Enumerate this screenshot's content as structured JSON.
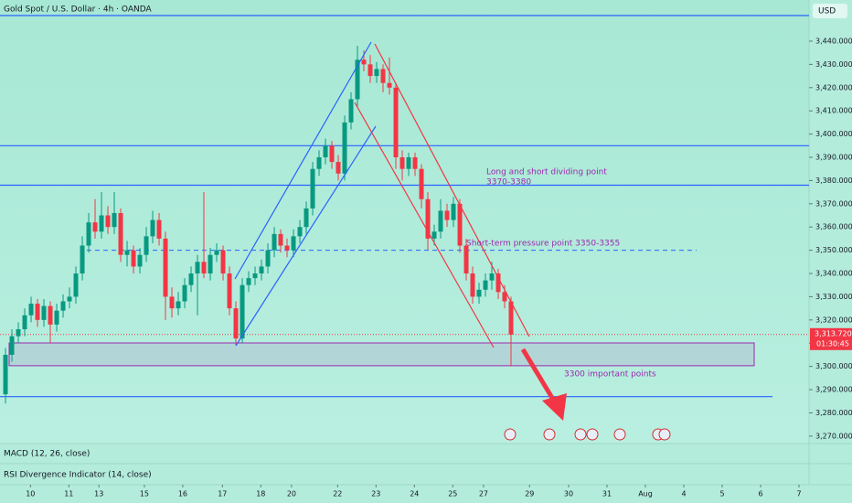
{
  "chart_data": {
    "type": "candlestick",
    "title": "Gold Spot / U.S. Dollar · 4h · OANDA",
    "currency": "USD",
    "countdown": "01:30:45",
    "last_price": {
      "value": 3313.72,
      "label": "3,313.720"
    },
    "up_color": "#089981",
    "down_color": "#f23645",
    "ylim": [
      3266.8,
      3457.7
    ],
    "xlim": [
      -0.86,
      125.57
    ],
    "yticks": [
      {
        "value": 3270,
        "label": "3,270.000"
      },
      {
        "value": 3280,
        "label": "3,280.000"
      },
      {
        "value": 3290,
        "label": "3,290.000"
      },
      {
        "value": 3300,
        "label": "3,300.000"
      },
      {
        "value": 3310,
        "label": "3,310.000"
      },
      {
        "value": 3320,
        "label": "3,320.000"
      },
      {
        "value": 3330,
        "label": "3,330.000"
      },
      {
        "value": 3340,
        "label": "3,340.000"
      },
      {
        "value": 3350,
        "label": "3,350.000"
      },
      {
        "value": 3360,
        "label": "3,360.000"
      },
      {
        "value": 3370,
        "label": "3,370.000"
      },
      {
        "value": 3380,
        "label": "3,380.000"
      },
      {
        "value": 3390,
        "label": "3,390.000"
      },
      {
        "value": 3400,
        "label": "3,400.000"
      },
      {
        "value": 3410,
        "label": "3,410.000"
      },
      {
        "value": 3420,
        "label": "3,420.000"
      },
      {
        "value": 3430,
        "label": "3,430.000"
      },
      {
        "value": 3440,
        "label": "3,440.000"
      }
    ],
    "xticks": [
      {
        "value": 3.9,
        "label": "10"
      },
      {
        "value": 9.9,
        "label": "11"
      },
      {
        "value": 14.6,
        "label": "13"
      },
      {
        "value": 21.7,
        "label": "15"
      },
      {
        "value": 27.7,
        "label": "16"
      },
      {
        "value": 33.9,
        "label": "17"
      },
      {
        "value": 39.9,
        "label": "18"
      },
      {
        "value": 44.7,
        "label": "20"
      },
      {
        "value": 51.9,
        "label": "22"
      },
      {
        "value": 57.9,
        "label": "23"
      },
      {
        "value": 63.9,
        "label": "24"
      },
      {
        "value": 69.9,
        "label": "25"
      },
      {
        "value": 74.7,
        "label": "27"
      },
      {
        "value": 81.9,
        "label": "29"
      },
      {
        "value": 88,
        "label": "30"
      },
      {
        "value": 94,
        "label": "31"
      },
      {
        "value": 100,
        "label": "Aug"
      },
      {
        "value": 106,
        "label": "4"
      },
      {
        "value": 112,
        "label": "5"
      },
      {
        "value": 118,
        "label": "6"
      },
      {
        "value": 124,
        "label": "7"
      }
    ],
    "levels": [
      3451,
      3395,
      3378,
      3287
    ],
    "dashed_level": 3350,
    "zone": [
      3300.3,
      3310.1
    ],
    "annotations": [
      "Long and short dividing point",
      "3370-3380",
      "Short-term pressure point 3350-3355",
      "3300 important points"
    ],
    "indicators": [
      "MACD (12, 26, close)",
      "RSI Divergence Indicator (14, close)"
    ],
    "ohlc": [
      [
        3288,
        3308,
        3284,
        3305
      ],
      [
        3305,
        3316,
        3302,
        3313
      ],
      [
        3313,
        3319,
        3310,
        3316
      ],
      [
        3316,
        3325,
        3313,
        3322
      ],
      [
        3322,
        3330,
        3319,
        3327
      ],
      [
        3327,
        3329,
        3317,
        3320
      ],
      [
        3320,
        3329,
        3317,
        3326
      ],
      [
        3326,
        3328,
        3310,
        3318
      ],
      [
        3318,
        3327,
        3315,
        3324
      ],
      [
        3324,
        3331,
        3321,
        3328
      ],
      [
        3328,
        3334,
        3325,
        3330
      ],
      [
        3330,
        3343,
        3327,
        3340
      ],
      [
        3340,
        3356,
        3337,
        3352
      ],
      [
        3352,
        3366,
        3349,
        3362
      ],
      [
        3362,
        3372,
        3355,
        3358
      ],
      [
        3358,
        3375,
        3355,
        3365
      ],
      [
        3365,
        3369,
        3357,
        3360
      ],
      [
        3360,
        3375,
        3357,
        3366
      ],
      [
        3366,
        3368,
        3345,
        3348
      ],
      [
        3348,
        3354,
        3343,
        3350
      ],
      [
        3350,
        3352,
        3340,
        3343
      ],
      [
        3343,
        3351,
        3340,
        3348
      ],
      [
        3348,
        3360,
        3345,
        3356
      ],
      [
        3356,
        3367,
        3353,
        3363
      ],
      [
        3363,
        3366,
        3352,
        3355
      ],
      [
        3355,
        3358,
        3320,
        3330
      ],
      [
        3330,
        3334,
        3321,
        3325
      ],
      [
        3325,
        3332,
        3322,
        3328
      ],
      [
        3328,
        3338,
        3325,
        3335
      ],
      [
        3335,
        3343,
        3332,
        3340
      ],
      [
        3340,
        3348,
        3322,
        3345
      ],
      [
        3345,
        3375,
        3338,
        3340
      ],
      [
        3340,
        3351,
        3337,
        3348
      ],
      [
        3348,
        3353,
        3345,
        3350
      ],
      [
        3350,
        3352,
        3337,
        3340
      ],
      [
        3340,
        3343,
        3322,
        3325
      ],
      [
        3325,
        3328,
        3309,
        3312
      ],
      [
        3312,
        3338,
        3310,
        3335
      ],
      [
        3335,
        3341,
        3332,
        3338
      ],
      [
        3338,
        3343,
        3335,
        3340
      ],
      [
        3340,
        3346,
        3337,
        3343
      ],
      [
        3343,
        3353,
        3340,
        3350
      ],
      [
        3350,
        3360,
        3347,
        3357
      ],
      [
        3357,
        3359,
        3349,
        3352
      ],
      [
        3352,
        3355,
        3347,
        3350
      ],
      [
        3350,
        3359,
        3347,
        3356
      ],
      [
        3356,
        3363,
        3353,
        3360
      ],
      [
        3360,
        3371,
        3357,
        3368
      ],
      [
        3368,
        3388,
        3365,
        3385
      ],
      [
        3385,
        3393,
        3382,
        3390
      ],
      [
        3390,
        3398,
        3387,
        3395
      ],
      [
        3395,
        3397,
        3385,
        3388
      ],
      [
        3388,
        3391,
        3380,
        3383
      ],
      [
        3383,
        3408,
        3380,
        3405
      ],
      [
        3405,
        3418,
        3402,
        3415
      ],
      [
        3415,
        3438,
        3412,
        3432
      ],
      [
        3432,
        3436,
        3427,
        3430
      ],
      [
        3430,
        3434,
        3422,
        3425
      ],
      [
        3425,
        3431,
        3422,
        3428
      ],
      [
        3428,
        3430,
        3418,
        3422
      ],
      [
        3422,
        3433,
        3417,
        3420
      ],
      [
        3420,
        3422,
        3385,
        3390
      ],
      [
        3390,
        3393,
        3380,
        3385
      ],
      [
        3385,
        3392,
        3382,
        3390
      ],
      [
        3390,
        3392,
        3382,
        3385
      ],
      [
        3385,
        3387,
        3368,
        3372
      ],
      [
        3372,
        3375,
        3350,
        3355
      ],
      [
        3355,
        3361,
        3352,
        3358
      ],
      [
        3358,
        3372,
        3355,
        3367
      ],
      [
        3367,
        3370,
        3360,
        3363
      ],
      [
        3363,
        3373,
        3360,
        3370
      ],
      [
        3370,
        3372,
        3349,
        3352
      ],
      [
        3352,
        3355,
        3337,
        3340
      ],
      [
        3340,
        3343,
        3327,
        3330
      ],
      [
        3330,
        3336,
        3327,
        3333
      ],
      [
        3333,
        3340,
        3330,
        3337
      ],
      [
        3337,
        3345,
        3333,
        3340
      ],
      [
        3340,
        3342,
        3329,
        3332
      ],
      [
        3332,
        3335,
        3325,
        3328
      ],
      [
        3328,
        3330,
        3300,
        3313.72
      ]
    ]
  }
}
